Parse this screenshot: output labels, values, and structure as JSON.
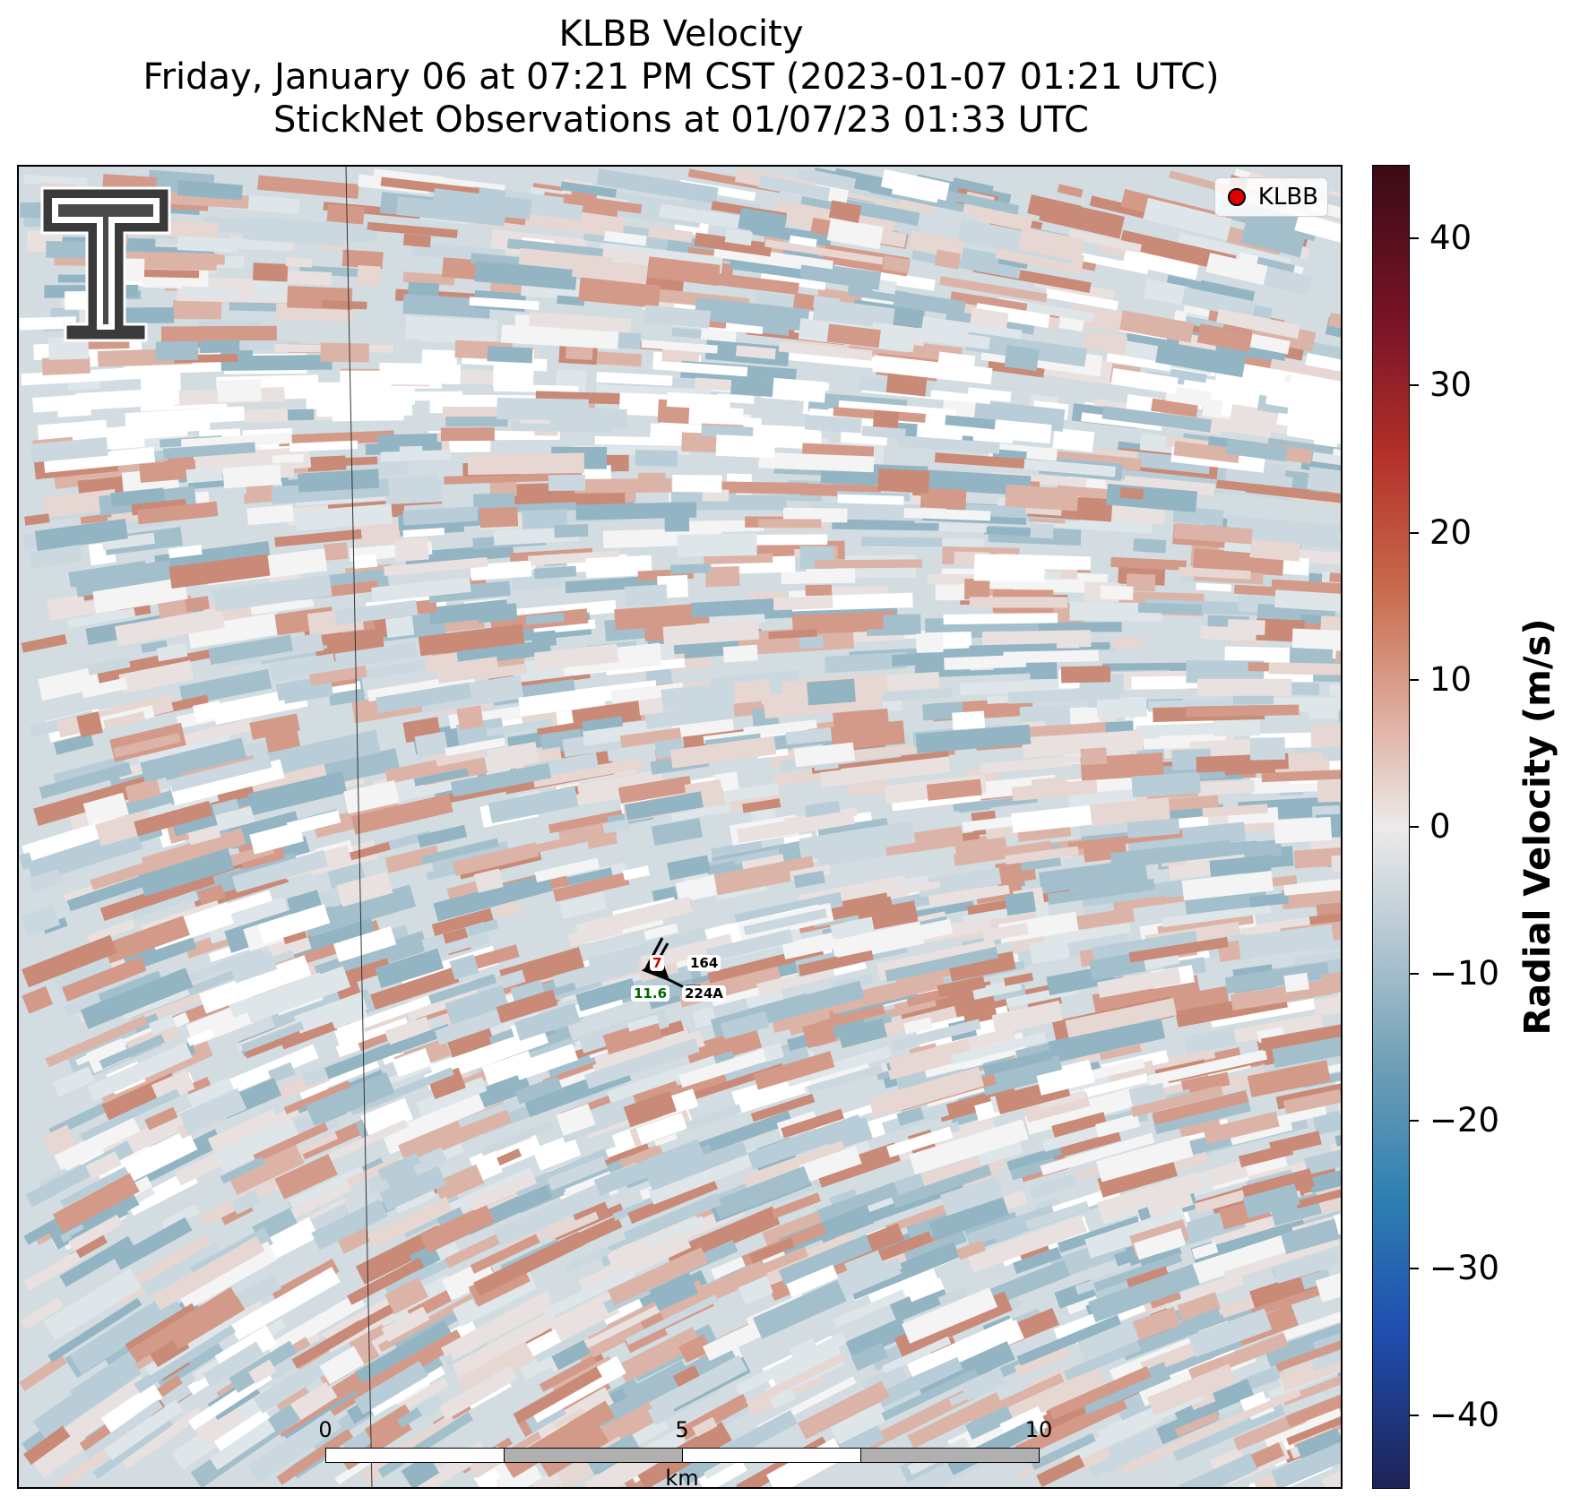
{
  "title": {
    "line1": "KLBB Velocity",
    "line2": "Friday, January 06 at 07:21 PM CST (2023-01-07 01:21 UTC)",
    "line3": "StickNet Observations at 01/07/23 01:33 UTC"
  },
  "legend": {
    "label": "KLBB",
    "marker_color": "#e00000"
  },
  "colorbar": {
    "label": "Radial Velocity (m/s)",
    "ticks": [
      "40",
      "30",
      "20",
      "10",
      "0",
      "−10",
      "−20",
      "−30",
      "−40"
    ],
    "tick_values": [
      40,
      30,
      20,
      10,
      0,
      -10,
      -20,
      -30,
      -40
    ],
    "range": [
      -45,
      45
    ],
    "colors": {
      "max": "#3a0b16",
      "positive": "#c86a4c",
      "zero": "#eceaea",
      "negative": "#6e9fb6",
      "min": "#1d2356"
    }
  },
  "scalebar": {
    "labels": [
      "0",
      "5",
      "10"
    ],
    "unit": "km",
    "max_km": 10
  },
  "stations": [
    {
      "id": "164",
      "value": "7",
      "value_color": "#cc0000"
    },
    {
      "id": "224A",
      "value": "11.6",
      "value_color": "#006600"
    }
  ],
  "logo": {
    "name": "texas-tech-double-t-logo"
  }
}
